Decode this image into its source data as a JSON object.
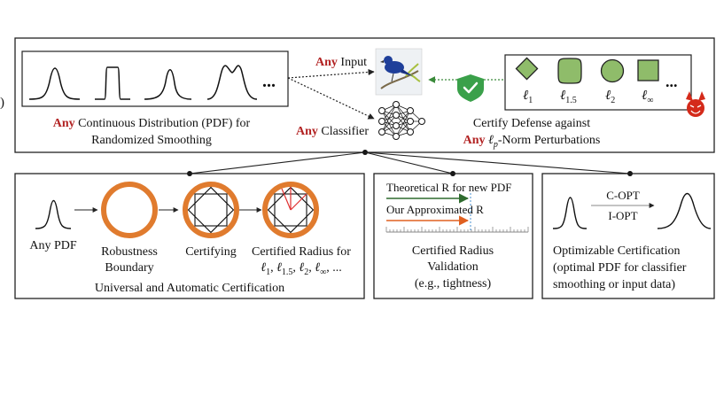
{
  "left_marker": ")",
  "top": {
    "pdf_ellipsis": "...",
    "pdf_caption": {
      "emphasis": "Any",
      "line1_rest": " Continuous Distribution (PDF) for",
      "line2": "Randomized Smoothing"
    },
    "input_label": {
      "emphasis": "Any",
      "rest": " Input"
    },
    "classifier_label": {
      "emphasis": "Any",
      "rest": " Classifier"
    },
    "norms": [
      "ℓ1",
      "ℓ1.5",
      "ℓ2",
      "ℓ∞"
    ],
    "norm_labels": [
      {
        "base": "ℓ",
        "sub": "1"
      },
      {
        "base": "ℓ",
        "sub": "1.5"
      },
      {
        "base": "ℓ",
        "sub": "2"
      },
      {
        "base": "ℓ",
        "sub": "∞"
      }
    ],
    "norm_ellipsis": "...",
    "defense_caption": {
      "line1": "Certify Defense against",
      "emphasis": "Any",
      "norm_base": "ℓ",
      "norm_sub": "p",
      "line2_rest": "-Norm Perturbations"
    }
  },
  "bottom_left": {
    "any_pdf": "Any PDF",
    "robustness": [
      "Robustness",
      "Boundary"
    ],
    "certifying": "Certifying",
    "radius_line1": "Certified Radius for",
    "radius_line2": "ℓ1, ℓ1.5, ℓ2, ℓ∞, ...",
    "radius_terms": [
      {
        "base": "ℓ",
        "sub": "1"
      },
      {
        "base": "ℓ",
        "sub": "1.5"
      },
      {
        "base": "ℓ",
        "sub": "2"
      },
      {
        "base": "ℓ",
        "sub": "∞"
      }
    ],
    "radius_tail": ", ...",
    "caption": "Universal and Automatic Certification"
  },
  "bottom_mid": {
    "theoretical": "Theoretical R for new PDF",
    "approx": "Our Approximated R",
    "caption": [
      "Certified Radius",
      "Validation",
      "(e.g., tightness)"
    ]
  },
  "bottom_right": {
    "copt": "C-OPT",
    "iopt": "I-OPT",
    "caption": [
      "Optimizable Certification",
      "(optimal PDF for classifier",
      "smoothing or input data)"
    ]
  },
  "colors": {
    "accent_red": "#b22222",
    "ring_orange": "#e07b2e",
    "shape_green": "#8fbc6a",
    "arrow_green": "#3a8a3a",
    "theoretical_line": "#2e6b2e",
    "approx_line": "#e06020",
    "shield": "#3aa04a",
    "devil": "#d42a1a"
  }
}
